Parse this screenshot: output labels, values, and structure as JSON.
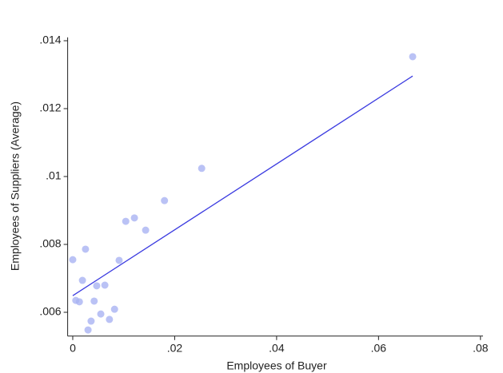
{
  "chart_data": {
    "type": "scatter",
    "x_label": "Employees of Buyer",
    "y_label": "Employees of Suppliers (Average)",
    "x": [
      0,
      0.0006,
      0.0013,
      0.0019,
      0.0025,
      0.003,
      0.0036,
      0.0042,
      0.0047,
      0.0055,
      0.0063,
      0.0072,
      0.0082,
      0.0091,
      0.0104,
      0.0121,
      0.0143,
      0.018,
      0.0253,
      0.0667
    ],
    "values": [
      0.00755,
      0.00635,
      0.00631,
      0.00694,
      0.00786,
      0.00548,
      0.00574,
      0.00633,
      0.00678,
      0.00595,
      0.0068,
      0.00579,
      0.00609,
      0.00753,
      0.00868,
      0.00878,
      0.00842,
      0.00929,
      0.01024,
      0.01353
    ],
    "color": "#a9b3f2",
    "fit_line": {
      "x": [
        0,
        0.0667
      ],
      "values": [
        0.00649,
        0.01296
      ],
      "color": "#3b3be0"
    },
    "xlim": [
      -0.001,
      0.0805
    ],
    "ylim": [
      0.0053,
      0.0141
    ],
    "xticks": [
      0,
      {
        "value": 0.02,
        "label": ".02"
      },
      {
        "value": 0.04,
        "label": ".04"
      },
      {
        "value": 0.06,
        "label": ".06"
      },
      {
        "value": 0.08,
        "label": ".08"
      }
    ],
    "yticks": [
      {
        "value": 0.006,
        "label": ".006"
      },
      {
        "value": 0.008,
        "label": ".008"
      },
      {
        "value": 0.01,
        "label": ".01"
      },
      {
        "value": 0.012,
        "label": ".012"
      },
      {
        "value": 0.014,
        "label": ".014"
      }
    ]
  }
}
